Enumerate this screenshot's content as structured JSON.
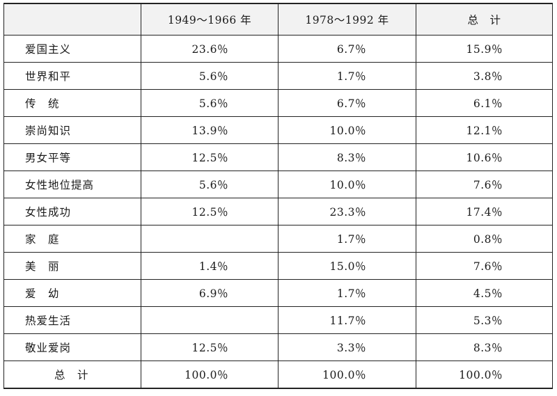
{
  "table": {
    "headers": [
      "",
      "1949～1966 年",
      "1978～1992 年",
      "总　计"
    ],
    "rows": [
      [
        "爱国主义",
        "23.6％",
        "6.7％",
        "15.9％"
      ],
      [
        "世界和平",
        "5.6％",
        "1.7％",
        "3.8％"
      ],
      [
        "传　统",
        "5.6％",
        "6.7％",
        "6.1％"
      ],
      [
        "崇尚知识",
        "13.9％",
        "10.0％",
        "12.1％"
      ],
      [
        "男女平等",
        "12.5％",
        "8.3％",
        "10.6％"
      ],
      [
        "女性地位提高",
        "5.6％",
        "10.0％",
        "7.6％"
      ],
      [
        "女性成功",
        "12.5％",
        "23.3％",
        "17.4％"
      ],
      [
        "家　庭",
        "",
        "1.7％",
        "0.8％"
      ],
      [
        "美　丽",
        "1.4％",
        "15.0％",
        "7.6％"
      ],
      [
        "爱　幼",
        "6.9％",
        "1.7％",
        "4.5％"
      ],
      [
        "热爱生活",
        "",
        "11.7％",
        "5.3％"
      ],
      [
        "敬业爱岗",
        "12.5％",
        "3.3％",
        "8.3％"
      ],
      [
        "总　计",
        "100.0％",
        "100.0％",
        "100.0％"
      ]
    ]
  }
}
